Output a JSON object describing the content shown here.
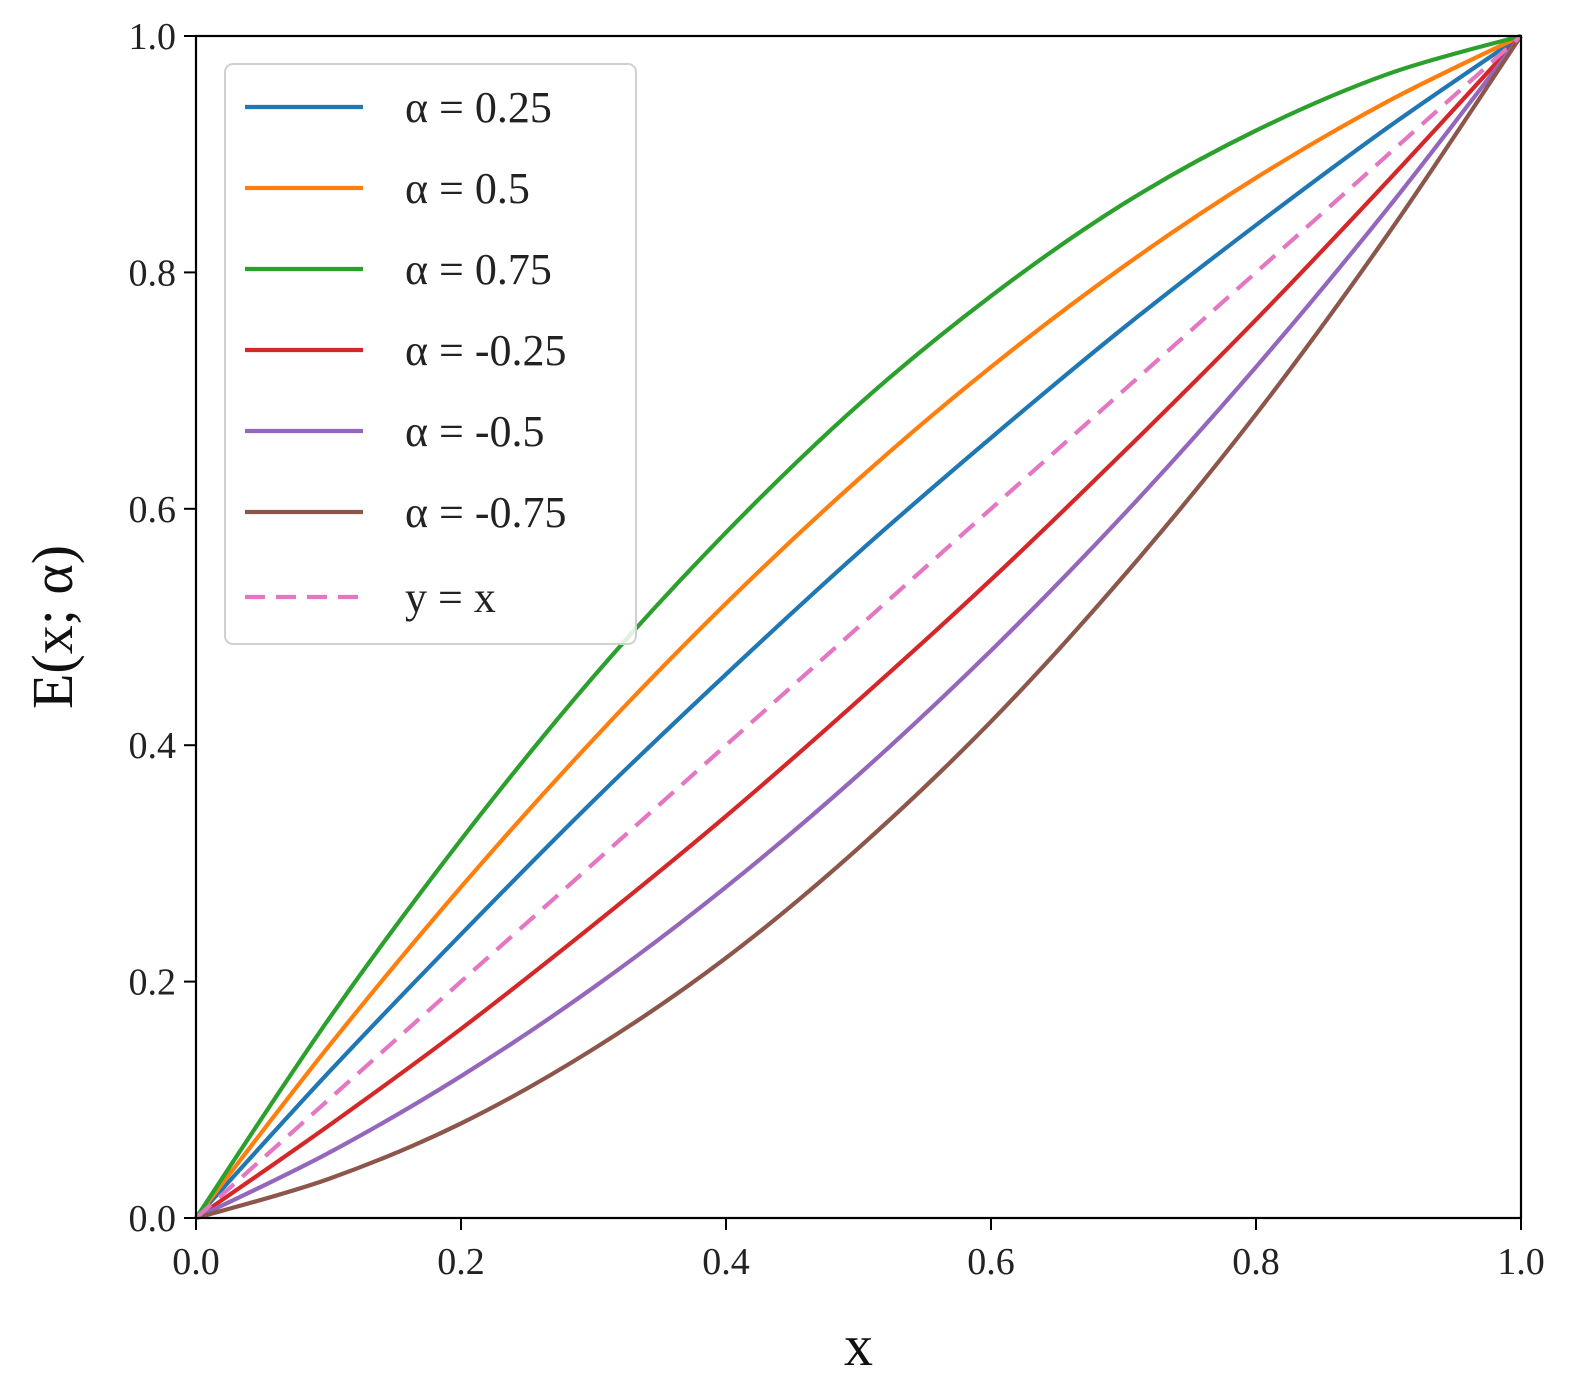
{
  "chart_data": {
    "type": "line",
    "title": "",
    "xlabel": "x",
    "ylabel": "E(x; α)",
    "xlim": [
      0.0,
      1.0
    ],
    "ylim": [
      0.0,
      1.0
    ],
    "xticks": [
      "0.0",
      "0.2",
      "0.4",
      "0.6",
      "0.8",
      "1.0"
    ],
    "yticks": [
      "0.0",
      "0.2",
      "0.4",
      "0.6",
      "0.8",
      "1.0"
    ],
    "grid": false,
    "legend_position": "top-left",
    "x": [
      0.0,
      0.1,
      0.2,
      0.3,
      0.4,
      0.5,
      0.6,
      0.7,
      0.8,
      0.9,
      1.0
    ],
    "series": [
      {
        "name": "α = 0.25",
        "color": "#1f77b4",
        "style": "solid",
        "values": [
          0.0,
          0.123,
          0.24,
          0.353,
          0.46,
          0.563,
          0.66,
          0.753,
          0.84,
          0.923,
          1.0
        ]
      },
      {
        "name": "α = 0.5",
        "color": "#ff7f0e",
        "style": "solid",
        "values": [
          0.0,
          0.145,
          0.28,
          0.405,
          0.52,
          0.625,
          0.72,
          0.805,
          0.88,
          0.945,
          1.0
        ]
      },
      {
        "name": "α = 0.75",
        "color": "#2ca02c",
        "style": "solid",
        "values": [
          0.0,
          0.168,
          0.32,
          0.458,
          0.58,
          0.688,
          0.78,
          0.858,
          0.92,
          0.968,
          1.0
        ]
      },
      {
        "name": "α = -0.25",
        "color": "#d62728",
        "style": "solid",
        "values": [
          0.0,
          0.078,
          0.16,
          0.248,
          0.34,
          0.438,
          0.54,
          0.648,
          0.76,
          0.878,
          1.0
        ]
      },
      {
        "name": "α = -0.5",
        "color": "#9467bd",
        "style": "solid",
        "values": [
          0.0,
          0.055,
          0.12,
          0.195,
          0.28,
          0.375,
          0.48,
          0.595,
          0.72,
          0.855,
          1.0
        ]
      },
      {
        "name": "α = -0.75",
        "color": "#8c564b",
        "style": "solid",
        "values": [
          0.0,
          0.033,
          0.08,
          0.143,
          0.22,
          0.313,
          0.42,
          0.543,
          0.68,
          0.833,
          1.0
        ]
      },
      {
        "name": "y = x",
        "color": "#e377c2",
        "style": "dashed",
        "values": [
          0.0,
          0.1,
          0.2,
          0.3,
          0.4,
          0.5,
          0.6,
          0.7,
          0.8,
          0.9,
          1.0
        ]
      }
    ]
  }
}
